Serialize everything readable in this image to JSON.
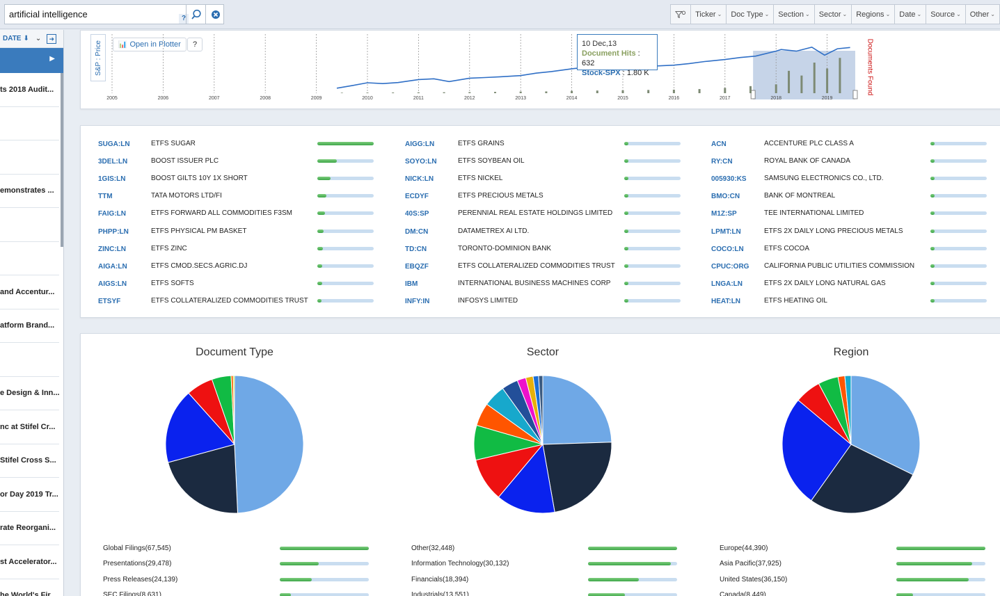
{
  "search": {
    "query": "artificial intelligence",
    "help": "?"
  },
  "filters": [
    "Ticker",
    "Doc Type",
    "Section",
    "Sector",
    "Regions",
    "Date",
    "Source",
    "Other"
  ],
  "left_panel": {
    "sort_label": "DATE",
    "docs": [
      "ts 2018 Audit...",
      "",
      "",
      "emonstrates ...",
      "",
      "",
      "and Accentur...",
      "atform Brand...",
      "",
      "e Design & Inn...",
      "nc at Stifel Cr...",
      "Stifel Cross S...",
      "or Day 2019 Tr...",
      "rate Reorgani...",
      "st Accelerator...",
      "he World's Fir..."
    ]
  },
  "timeline": {
    "y_label": "S&P : Price",
    "right_label": "Documents Found",
    "open_plotter": "Open in Plotter",
    "help": "?",
    "years": [
      "2005",
      "2006",
      "2007",
      "2008",
      "2009",
      "2010",
      "2011",
      "2012",
      "2013",
      "2014",
      "2015",
      "2016",
      "2017",
      "2018",
      "2019"
    ],
    "tooltip": {
      "date": "10 Dec,13",
      "doc_hits_label": "Document Hits",
      "doc_hits_value": "632",
      "stock_label": "Stock-SPX",
      "stock_value": "1.80 K"
    },
    "chart_data": {
      "type": "line",
      "series": [
        {
          "name": "Stock-SPX",
          "x": [
            2009.4,
            2009.7,
            2010,
            2010.3,
            2010.6,
            2011,
            2011.3,
            2011.6,
            2012,
            2012.3,
            2012.6,
            2013,
            2013.3,
            2013.6,
            2014,
            2014.3,
            2014.6,
            2015,
            2015.3,
            2015.6,
            2016,
            2016.3,
            2016.6,
            2017,
            2017.3,
            2017.6,
            2018,
            2018.1,
            2018.4,
            2018.7,
            2018.95,
            2019.2,
            2019.45
          ],
          "y": [
            0.85,
            0.98,
            1.12,
            1.08,
            1.13,
            1.28,
            1.32,
            1.18,
            1.35,
            1.38,
            1.42,
            1.48,
            1.6,
            1.68,
            1.82,
            1.9,
            1.97,
            2.06,
            2.1,
            1.95,
            2.0,
            2.08,
            2.18,
            2.28,
            2.38,
            2.45,
            2.7,
            2.78,
            2.7,
            2.9,
            2.5,
            2.82,
            2.88
          ]
        },
        {
          "name": "Documents Found",
          "x": [
            2009.5,
            2010,
            2010.5,
            2011,
            2011.5,
            2012,
            2012.5,
            2013,
            2013.5,
            2014,
            2014.5,
            2015,
            2015.5,
            2016,
            2016.5,
            2017,
            2017.5,
            2018,
            2018.25,
            2018.5,
            2018.75,
            2019,
            2019.25
          ],
          "y": [
            8,
            10,
            12,
            14,
            16,
            18,
            22,
            28,
            30,
            40,
            45,
            50,
            55,
            60,
            70,
            90,
            120,
            150,
            380,
            300,
            520,
            420,
            600
          ]
        }
      ]
    }
  },
  "tickers": [
    {
      "sym": "SUGA:LN",
      "name": "ETFS SUGAR",
      "v": 1.0
    },
    {
      "sym": "3DEL:LN",
      "name": "BOOST ISSUER PLC",
      "v": 0.35
    },
    {
      "sym": "1GIS:LN",
      "name": "BOOST GILTS 10Y 1X SHORT",
      "v": 0.23
    },
    {
      "sym": "TTM",
      "name": "TATA MOTORS LTD/FI",
      "v": 0.16
    },
    {
      "sym": "FAIG:LN",
      "name": "ETFS FORWARD ALL COMMODITIES F3SM",
      "v": 0.14
    },
    {
      "sym": "PHPP:LN",
      "name": "ETFS PHYSICAL PM BASKET",
      "v": 0.11
    },
    {
      "sym": "ZINC:LN",
      "name": "ETFS ZINC",
      "v": 0.1
    },
    {
      "sym": "AIGA:LN",
      "name": "ETFS CMOD.SECS.AGRIC.DJ",
      "v": 0.09
    },
    {
      "sym": "AIGS:LN",
      "name": "ETFS SOFTS",
      "v": 0.09
    },
    {
      "sym": "ETSYF",
      "name": "ETFS COLLATERALIZED COMMODITIES TRUST",
      "v": 0.08
    },
    {
      "sym": "AIGG:LN",
      "name": "ETFS GRAINS",
      "v": 0.08
    },
    {
      "sym": "SOYO:LN",
      "name": "ETFS SOYBEAN OIL",
      "v": 0.07
    },
    {
      "sym": "NICK:LN",
      "name": "ETFS NICKEL",
      "v": 0.07
    },
    {
      "sym": "ECDYF",
      "name": "ETFS PRECIOUS METALS",
      "v": 0.07
    },
    {
      "sym": "40S:SP",
      "name": "PERENNIAL REAL ESTATE HOLDINGS LIMITED",
      "v": 0.07
    },
    {
      "sym": "DM:CN",
      "name": "DATAMETREX AI LTD.",
      "v": 0.07
    },
    {
      "sym": "TD:CN",
      "name": "TORONTO-DOMINION BANK",
      "v": 0.07
    },
    {
      "sym": "EBQZF",
      "name": "ETFS COLLATERALIZED COMMODITIES TRUST",
      "v": 0.07
    },
    {
      "sym": "IBM",
      "name": "INTERNATIONAL BUSINESS MACHINES CORP",
      "v": 0.07
    },
    {
      "sym": "INFY:IN",
      "name": "INFOSYS LIMITED",
      "v": 0.07
    },
    {
      "sym": "ACN",
      "name": "ACCENTURE PLC CLASS A",
      "v": 0.07
    },
    {
      "sym": "RY:CN",
      "name": "ROYAL BANK OF CANADA",
      "v": 0.07
    },
    {
      "sym": "005930:KS",
      "name": "SAMSUNG ELECTRONICS CO., LTD.",
      "v": 0.07
    },
    {
      "sym": "BMO:CN",
      "name": "BANK OF MONTREAL",
      "v": 0.07
    },
    {
      "sym": "M1Z:SP",
      "name": "TEE INTERNATIONAL LIMITED",
      "v": 0.07
    },
    {
      "sym": "LPMT:LN",
      "name": "ETFS 2X DAILY LONG PRECIOUS METALS",
      "v": 0.07
    },
    {
      "sym": "COCO:LN",
      "name": "ETFS COCOA",
      "v": 0.07
    },
    {
      "sym": "CPUC:ORG",
      "name": "CALIFORNIA PUBLIC UTILITIES COMMISSION",
      "v": 0.07
    },
    {
      "sym": "LNGA:LN",
      "name": "ETFS 2X DAILY LONG NATURAL GAS",
      "v": 0.07
    },
    {
      "sym": "HEAT:LN",
      "name": "ETFS HEATING OIL",
      "v": 0.07
    }
  ],
  "pies": [
    {
      "title": "Document Type",
      "chart_data": {
        "type": "pie",
        "slices": [
          {
            "label": "Global Filings(67,545)",
            "value": 67545,
            "color": "#6fa8e6"
          },
          {
            "label": "Presentations(29,478)",
            "value": 29478,
            "color": "#1b2a40"
          },
          {
            "label": "Press Releases(24,139)",
            "value": 24139,
            "color": "#0a22ee"
          },
          {
            "label": "SEC Filings(8,631)",
            "value": 8631,
            "color": "#ee1111"
          },
          {
            "label": "",
            "value": 6200,
            "color": "#11bb44"
          },
          {
            "label": "",
            "value": 700,
            "color": "#ff6600"
          },
          {
            "label": "",
            "value": 400,
            "color": "#aadd00"
          }
        ]
      }
    },
    {
      "title": "Sector",
      "chart_data": {
        "type": "pie",
        "slices": [
          {
            "label": "Other(32,448)",
            "value": 32448,
            "color": "#6fa8e6"
          },
          {
            "label": "Information Technology(30,132)",
            "value": 30132,
            "color": "#1b2a40"
          },
          {
            "label": "Financials(18,394)",
            "value": 18394,
            "color": "#0a22ee"
          },
          {
            "label": "Industrials(13,551)",
            "value": 13551,
            "color": "#ee1111"
          },
          {
            "label": "",
            "value": 10800,
            "color": "#11bb44"
          },
          {
            "label": "",
            "value": 7200,
            "color": "#ff5500"
          },
          {
            "label": "",
            "value": 6900,
            "color": "#17a8cc"
          },
          {
            "label": "",
            "value": 5100,
            "color": "#234f99"
          },
          {
            "label": "",
            "value": 2700,
            "color": "#ee11cc"
          },
          {
            "label": "",
            "value": 2300,
            "color": "#e8b00a"
          },
          {
            "label": "",
            "value": 1700,
            "color": "#1c6fd6"
          },
          {
            "label": "",
            "value": 1300,
            "color": "#3a5a80"
          }
        ]
      }
    },
    {
      "title": "Region",
      "chart_data": {
        "type": "pie",
        "slices": [
          {
            "label": "Europe(44,390)",
            "value": 44390,
            "color": "#6fa8e6"
          },
          {
            "label": "Asia Pacific(37,925)",
            "value": 37925,
            "color": "#1b2a40"
          },
          {
            "label": "United States(36,150)",
            "value": 36150,
            "color": "#0a22ee"
          },
          {
            "label": "Canada(8,449)",
            "value": 8449,
            "color": "#ee1111"
          },
          {
            "label": "",
            "value": 6500,
            "color": "#11bb44"
          },
          {
            "label": "",
            "value": 2200,
            "color": "#ff5500"
          },
          {
            "label": "",
            "value": 2000,
            "color": "#17a8cc"
          }
        ]
      }
    }
  ]
}
